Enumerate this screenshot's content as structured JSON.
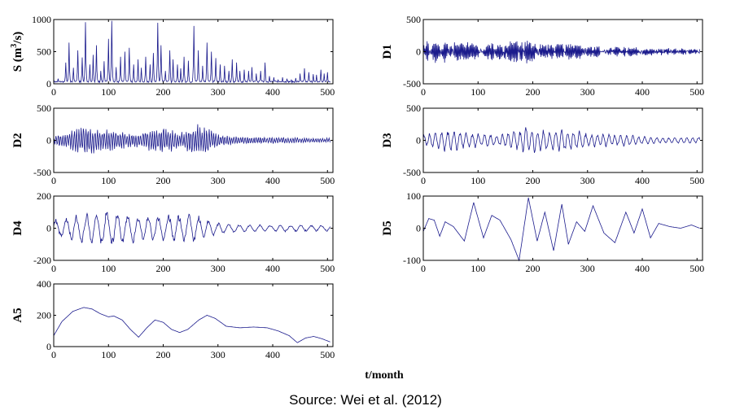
{
  "source_text": "Source: Wei et al. (2012)",
  "xlabel": "t/month",
  "series_color": "#1a1a8c",
  "chart_data": [
    {
      "type": "line",
      "id": "S",
      "ylabel": "S (m³/s)",
      "ylabel_main": "S (m",
      "ylabel_sup": "3",
      "ylabel_tail": "/s)",
      "xlim": [
        0,
        510
      ],
      "ylim": [
        0,
        1000
      ],
      "xticks": [
        0,
        100,
        200,
        300,
        400,
        500
      ],
      "yticks": [
        0,
        500,
        1000
      ],
      "peaks": [
        [
          8,
          80
        ],
        [
          22,
          330
        ],
        [
          28,
          640
        ],
        [
          36,
          250
        ],
        [
          44,
          520
        ],
        [
          52,
          410
        ],
        [
          58,
          960
        ],
        [
          66,
          300
        ],
        [
          72,
          450
        ],
        [
          78,
          600
        ],
        [
          86,
          200
        ],
        [
          92,
          350
        ],
        [
          100,
          700
        ],
        [
          106,
          980
        ],
        [
          114,
          260
        ],
        [
          122,
          420
        ],
        [
          130,
          500
        ],
        [
          138,
          560
        ],
        [
          146,
          300
        ],
        [
          154,
          380
        ],
        [
          160,
          250
        ],
        [
          168,
          420
        ],
        [
          176,
          300
        ],
        [
          182,
          480
        ],
        [
          190,
          950
        ],
        [
          196,
          600
        ],
        [
          204,
          200
        ],
        [
          212,
          520
        ],
        [
          218,
          380
        ],
        [
          226,
          300
        ],
        [
          232,
          240
        ],
        [
          238,
          420
        ],
        [
          246,
          360
        ],
        [
          256,
          900
        ],
        [
          264,
          520
        ],
        [
          272,
          280
        ],
        [
          280,
          640
        ],
        [
          288,
          500
        ],
        [
          296,
          400
        ],
        [
          304,
          300
        ],
        [
          312,
          280
        ],
        [
          320,
          200
        ],
        [
          326,
          380
        ],
        [
          334,
          330
        ],
        [
          340,
          200
        ],
        [
          348,
          220
        ],
        [
          356,
          200
        ],
        [
          362,
          260
        ],
        [
          370,
          160
        ],
        [
          378,
          200
        ],
        [
          386,
          330
        ],
        [
          394,
          120
        ],
        [
          402,
          100
        ],
        [
          410,
          60
        ],
        [
          418,
          100
        ],
        [
          426,
          80
        ],
        [
          434,
          60
        ],
        [
          442,
          90
        ],
        [
          450,
          160
        ],
        [
          458,
          240
        ],
        [
          466,
          180
        ],
        [
          474,
          150
        ],
        [
          480,
          140
        ],
        [
          488,
          220
        ],
        [
          494,
          160
        ],
        [
          500,
          180
        ],
        [
          506,
          60
        ]
      ]
    },
    {
      "type": "line",
      "id": "D1",
      "ylabel": "D1",
      "xlim": [
        0,
        510
      ],
      "ylim": [
        -500,
        500
      ],
      "xticks": [
        0,
        100,
        200,
        300,
        400,
        500
      ],
      "yticks": [
        -500,
        0,
        500
      ],
      "period": 2,
      "amp": [
        [
          0,
          180
        ],
        [
          60,
          140
        ],
        [
          120,
          120
        ],
        [
          185,
          170
        ],
        [
          260,
          110
        ],
        [
          320,
          90
        ],
        [
          400,
          60
        ],
        [
          510,
          45
        ]
      ]
    },
    {
      "type": "line",
      "id": "D2",
      "ylabel": "D2",
      "xlim": [
        0,
        510
      ],
      "ylim": [
        -500,
        500
      ],
      "xticks": [
        0,
        100,
        200,
        300,
        400,
        500
      ],
      "yticks": [
        -500,
        0,
        500
      ],
      "period": 4.2,
      "amp": [
        [
          0,
          60
        ],
        [
          30,
          130
        ],
        [
          50,
          200
        ],
        [
          100,
          160
        ],
        [
          150,
          100
        ],
        [
          200,
          200
        ],
        [
          230,
          110
        ],
        [
          260,
          260
        ],
        [
          300,
          90
        ],
        [
          350,
          55
        ],
        [
          400,
          45
        ],
        [
          510,
          30
        ]
      ]
    },
    {
      "type": "line",
      "id": "D3",
      "ylabel": "D3",
      "xlim": [
        0,
        510
      ],
      "ylim": [
        -500,
        500
      ],
      "xticks": [
        0,
        100,
        200,
        300,
        400,
        500
      ],
      "yticks": [
        -500,
        0,
        500
      ],
      "period": 11,
      "amp": [
        [
          0,
          80
        ],
        [
          40,
          160
        ],
        [
          60,
          150
        ],
        [
          100,
          110
        ],
        [
          140,
          80
        ],
        [
          190,
          190
        ],
        [
          230,
          150
        ],
        [
          270,
          170
        ],
        [
          300,
          100
        ],
        [
          350,
          90
        ],
        [
          400,
          60
        ],
        [
          450,
          40
        ],
        [
          510,
          50
        ]
      ]
    },
    {
      "type": "line",
      "id": "D4",
      "ylabel": "D4",
      "xlim": [
        0,
        510
      ],
      "ylim": [
        -200,
        200
      ],
      "xticks": [
        0,
        100,
        200,
        300,
        400,
        500
      ],
      "yticks": [
        -200,
        0,
        200
      ],
      "period": 19,
      "amp": [
        [
          0,
          50
        ],
        [
          50,
          80
        ],
        [
          100,
          110
        ],
        [
          150,
          80
        ],
        [
          200,
          70
        ],
        [
          250,
          90
        ],
        [
          270,
          70
        ],
        [
          300,
          30
        ],
        [
          350,
          20
        ],
        [
          400,
          20
        ],
        [
          510,
          18
        ]
      ]
    },
    {
      "type": "line",
      "id": "D5",
      "ylabel": "D5",
      "xlim": [
        0,
        510
      ],
      "ylim": [
        -100,
        100
      ],
      "xticks": [
        0,
        100,
        200,
        300,
        400,
        500
      ],
      "yticks": [
        -100,
        0,
        100
      ],
      "points": [
        [
          0,
          -10
        ],
        [
          10,
          30
        ],
        [
          20,
          25
        ],
        [
          30,
          -25
        ],
        [
          40,
          20
        ],
        [
          55,
          5
        ],
        [
          75,
          -40
        ],
        [
          92,
          80
        ],
        [
          110,
          -30
        ],
        [
          125,
          40
        ],
        [
          140,
          25
        ],
        [
          160,
          -35
        ],
        [
          175,
          -100
        ],
        [
          192,
          95
        ],
        [
          208,
          -40
        ],
        [
          222,
          50
        ],
        [
          238,
          -70
        ],
        [
          253,
          75
        ],
        [
          265,
          -50
        ],
        [
          280,
          20
        ],
        [
          295,
          -10
        ],
        [
          310,
          70
        ],
        [
          330,
          -15
        ],
        [
          350,
          -45
        ],
        [
          370,
          50
        ],
        [
          385,
          -15
        ],
        [
          400,
          60
        ],
        [
          415,
          -30
        ],
        [
          430,
          15
        ],
        [
          450,
          5
        ],
        [
          470,
          0
        ],
        [
          490,
          10
        ],
        [
          505,
          0
        ]
      ]
    },
    {
      "type": "line",
      "id": "A5",
      "ylabel": "A5",
      "xlim": [
        0,
        510
      ],
      "ylim": [
        0,
        400
      ],
      "xticks": [
        0,
        100,
        200,
        300,
        400,
        500
      ],
      "yticks": [
        0,
        200,
        400
      ],
      "points": [
        [
          0,
          70
        ],
        [
          15,
          160
        ],
        [
          35,
          225
        ],
        [
          55,
          250
        ],
        [
          70,
          240
        ],
        [
          85,
          210
        ],
        [
          100,
          190
        ],
        [
          110,
          195
        ],
        [
          125,
          170
        ],
        [
          140,
          110
        ],
        [
          155,
          60
        ],
        [
          170,
          120
        ],
        [
          185,
          170
        ],
        [
          200,
          155
        ],
        [
          215,
          110
        ],
        [
          230,
          90
        ],
        [
          245,
          110
        ],
        [
          265,
          170
        ],
        [
          280,
          200
        ],
        [
          295,
          180
        ],
        [
          315,
          130
        ],
        [
          340,
          120
        ],
        [
          365,
          125
        ],
        [
          390,
          120
        ],
        [
          410,
          100
        ],
        [
          430,
          70
        ],
        [
          445,
          25
        ],
        [
          460,
          55
        ],
        [
          475,
          65
        ],
        [
          490,
          50
        ],
        [
          505,
          30
        ]
      ]
    }
  ]
}
